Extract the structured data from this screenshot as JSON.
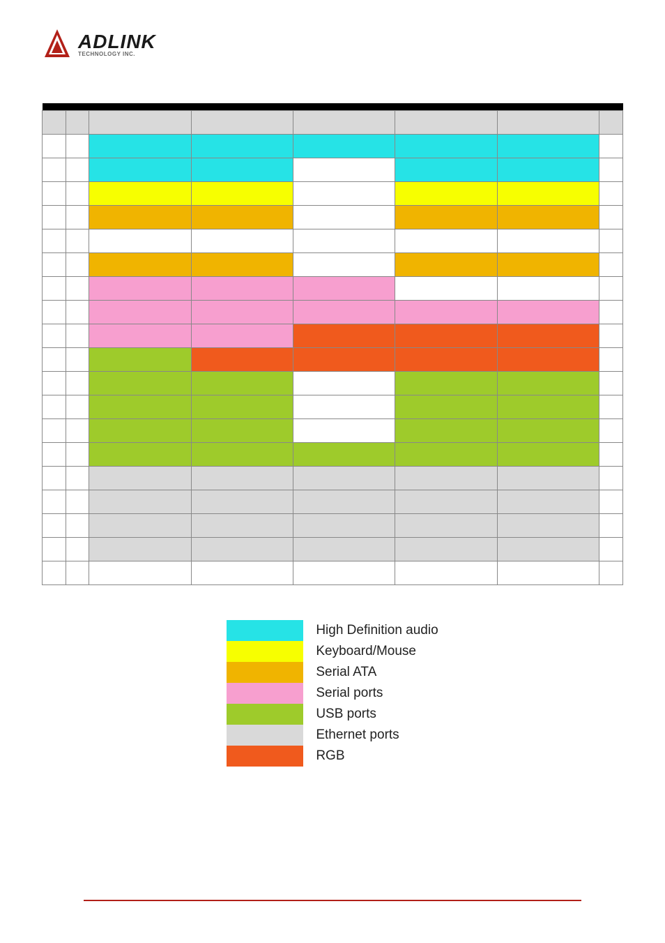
{
  "logo": {
    "main": "ADLINK",
    "sub": "TECHNOLOGY INC."
  },
  "colors": {
    "hda": "#26e3e6",
    "kbm": "#f7ff00",
    "sata": "#f0b400",
    "serial": "#f79fcf",
    "usb": "#9ecb2b",
    "eth": "#d9d9d9",
    "rgb": "#f05a1d",
    "white": "#ffffff",
    "black": "#000000"
  },
  "table": {
    "header_bg": "#d9d9d9",
    "rows": [
      {
        "cells": [
          {
            "bg": "white"
          },
          {
            "bg": "white"
          },
          {
            "bg": "hda"
          },
          {
            "bg": "hda"
          },
          {
            "bg": "hda"
          },
          {
            "bg": "hda"
          },
          {
            "bg": "hda"
          },
          {
            "bg": "white"
          }
        ]
      },
      {
        "cells": [
          {
            "bg": "white"
          },
          {
            "bg": "white"
          },
          {
            "bg": "hda"
          },
          {
            "bg": "hda"
          },
          {
            "bg": "white"
          },
          {
            "bg": "hda"
          },
          {
            "bg": "hda"
          },
          {
            "bg": "white"
          }
        ]
      },
      {
        "cells": [
          {
            "bg": "white"
          },
          {
            "bg": "white"
          },
          {
            "bg": "kbm"
          },
          {
            "bg": "kbm"
          },
          {
            "bg": "white"
          },
          {
            "bg": "kbm"
          },
          {
            "bg": "kbm"
          },
          {
            "bg": "white"
          }
        ]
      },
      {
        "cells": [
          {
            "bg": "white"
          },
          {
            "bg": "white"
          },
          {
            "bg": "sata"
          },
          {
            "bg": "sata"
          },
          {
            "bg": "white"
          },
          {
            "bg": "sata"
          },
          {
            "bg": "sata"
          },
          {
            "bg": "white"
          }
        ]
      },
      {
        "cells": [
          {
            "bg": "white"
          },
          {
            "bg": "white"
          },
          {
            "bg": "white"
          },
          {
            "bg": "white"
          },
          {
            "bg": "white"
          },
          {
            "bg": "white"
          },
          {
            "bg": "white"
          },
          {
            "bg": "white"
          }
        ]
      },
      {
        "cells": [
          {
            "bg": "white"
          },
          {
            "bg": "white"
          },
          {
            "bg": "sata"
          },
          {
            "bg": "sata"
          },
          {
            "bg": "white"
          },
          {
            "bg": "sata"
          },
          {
            "bg": "sata"
          },
          {
            "bg": "white"
          }
        ]
      },
      {
        "cells": [
          {
            "bg": "white"
          },
          {
            "bg": "white"
          },
          {
            "bg": "serial"
          },
          {
            "bg": "serial"
          },
          {
            "bg": "serial"
          },
          {
            "bg": "white"
          },
          {
            "bg": "white"
          },
          {
            "bg": "white"
          }
        ]
      },
      {
        "cells": [
          {
            "bg": "white"
          },
          {
            "bg": "white"
          },
          {
            "bg": "serial"
          },
          {
            "bg": "serial"
          },
          {
            "bg": "serial"
          },
          {
            "bg": "serial"
          },
          {
            "bg": "serial"
          },
          {
            "bg": "white"
          }
        ]
      },
      {
        "cells": [
          {
            "bg": "white"
          },
          {
            "bg": "white"
          },
          {
            "bg": "serial"
          },
          {
            "bg": "serial"
          },
          {
            "bg": "rgb"
          },
          {
            "bg": "rgb"
          },
          {
            "bg": "rgb"
          },
          {
            "bg": "white"
          }
        ]
      },
      {
        "cells": [
          {
            "bg": "white"
          },
          {
            "bg": "white"
          },
          {
            "bg": "usb"
          },
          {
            "bg": "rgb"
          },
          {
            "bg": "rgb"
          },
          {
            "bg": "rgb"
          },
          {
            "bg": "rgb"
          },
          {
            "bg": "white"
          }
        ]
      },
      {
        "cells": [
          {
            "bg": "white"
          },
          {
            "bg": "white"
          },
          {
            "bg": "usb"
          },
          {
            "bg": "usb"
          },
          {
            "bg": "white"
          },
          {
            "bg": "usb"
          },
          {
            "bg": "usb"
          },
          {
            "bg": "white"
          }
        ]
      },
      {
        "cells": [
          {
            "bg": "white"
          },
          {
            "bg": "white"
          },
          {
            "bg": "usb"
          },
          {
            "bg": "usb"
          },
          {
            "bg": "white"
          },
          {
            "bg": "usb"
          },
          {
            "bg": "usb"
          },
          {
            "bg": "white"
          }
        ]
      },
      {
        "cells": [
          {
            "bg": "white"
          },
          {
            "bg": "white"
          },
          {
            "bg": "usb"
          },
          {
            "bg": "usb"
          },
          {
            "bg": "white"
          },
          {
            "bg": "usb"
          },
          {
            "bg": "usb"
          },
          {
            "bg": "white"
          }
        ]
      },
      {
        "cells": [
          {
            "bg": "white"
          },
          {
            "bg": "white"
          },
          {
            "bg": "usb"
          },
          {
            "bg": "usb"
          },
          {
            "bg": "usb"
          },
          {
            "bg": "usb"
          },
          {
            "bg": "usb"
          },
          {
            "bg": "white"
          }
        ]
      },
      {
        "cells": [
          {
            "bg": "white"
          },
          {
            "bg": "white"
          },
          {
            "bg": "eth"
          },
          {
            "bg": "eth"
          },
          {
            "bg": "eth"
          },
          {
            "bg": "eth"
          },
          {
            "bg": "eth"
          },
          {
            "bg": "white"
          }
        ]
      },
      {
        "cells": [
          {
            "bg": "white"
          },
          {
            "bg": "white"
          },
          {
            "bg": "eth"
          },
          {
            "bg": "eth"
          },
          {
            "bg": "eth"
          },
          {
            "bg": "eth"
          },
          {
            "bg": "eth"
          },
          {
            "bg": "white"
          }
        ]
      },
      {
        "cells": [
          {
            "bg": "white"
          },
          {
            "bg": "white"
          },
          {
            "bg": "eth"
          },
          {
            "bg": "eth"
          },
          {
            "bg": "eth"
          },
          {
            "bg": "eth"
          },
          {
            "bg": "eth"
          },
          {
            "bg": "white"
          }
        ]
      },
      {
        "cells": [
          {
            "bg": "white"
          },
          {
            "bg": "white"
          },
          {
            "bg": "eth"
          },
          {
            "bg": "eth"
          },
          {
            "bg": "eth"
          },
          {
            "bg": "eth"
          },
          {
            "bg": "eth"
          },
          {
            "bg": "white"
          }
        ]
      },
      {
        "cells": [
          {
            "bg": "white"
          },
          {
            "bg": "white"
          },
          {
            "bg": "white"
          },
          {
            "bg": "white"
          },
          {
            "bg": "white"
          },
          {
            "bg": "white"
          },
          {
            "bg": "white"
          },
          {
            "bg": "white"
          }
        ]
      }
    ]
  },
  "legend": [
    {
      "color": "hda",
      "label": "High Definition audio"
    },
    {
      "color": "kbm",
      "label": "Keyboard/Mouse"
    },
    {
      "color": "sata",
      "label": "Serial ATA"
    },
    {
      "color": "serial",
      "label": "Serial ports"
    },
    {
      "color": "usb",
      "label": "USB ports"
    },
    {
      "color": "eth",
      "label": "Ethernet ports"
    },
    {
      "color": "rgb",
      "label": "RGB"
    }
  ]
}
